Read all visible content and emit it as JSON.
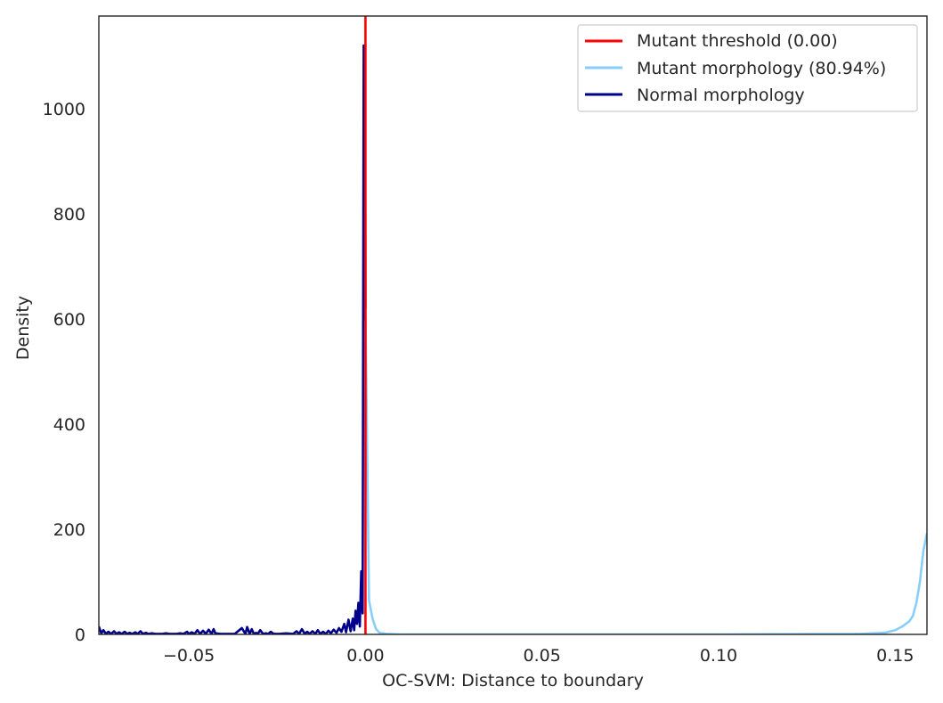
{
  "chart_data": {
    "type": "line",
    "xlabel": "OC-SVM: Distance to boundary",
    "ylabel": "Density",
    "xlim": [
      -0.0755,
      0.159
    ],
    "ylim": [
      0,
      1176
    ],
    "x_ticks": [
      -0.05,
      0.0,
      0.05,
      0.1,
      0.15
    ],
    "x_tick_labels": [
      "−0.05",
      "0.00",
      "0.05",
      "0.10",
      "0.15"
    ],
    "y_ticks": [
      0,
      200,
      400,
      600,
      800,
      1000
    ],
    "y_tick_labels": [
      "0",
      "200",
      "400",
      "600",
      "800",
      "1000"
    ],
    "grid": false,
    "legend_position": "top-right",
    "threshold": {
      "name": "Mutant threshold (0.00)",
      "x": 0.0,
      "color": "#ff0000"
    },
    "series": [
      {
        "name": "Mutant morphology (80.94%)",
        "color": "#87cefa",
        "x": [
          0.0,
          0.001,
          0.002,
          0.003,
          0.004,
          0.006,
          0.01,
          0.05,
          0.1,
          0.14,
          0.147,
          0.15,
          0.152,
          0.154,
          0.155,
          0.156,
          0.157,
          0.158,
          0.159
        ],
        "y": [
          620,
          65,
          30,
          10,
          3,
          1,
          0,
          0,
          0,
          1,
          3,
          8,
          15,
          25,
          35,
          60,
          100,
          160,
          192
        ]
      },
      {
        "name": "Normal morphology",
        "color": "#00008b",
        "x": [
          -0.0755,
          -0.0748,
          -0.0742,
          -0.0735,
          -0.0728,
          -0.072,
          -0.0712,
          -0.0705,
          -0.0698,
          -0.069,
          -0.0682,
          -0.0675,
          -0.0668,
          -0.066,
          -0.0652,
          -0.0645,
          -0.0637,
          -0.063,
          -0.0622,
          -0.0614,
          -0.0605,
          -0.0595,
          -0.0585,
          -0.0575,
          -0.0565,
          -0.0555,
          -0.0545,
          -0.0535,
          -0.0525,
          -0.0515,
          -0.0505,
          -0.05,
          -0.0492,
          -0.0484,
          -0.0476,
          -0.0468,
          -0.046,
          -0.0452,
          -0.0444,
          -0.0436,
          -0.043,
          -0.0425,
          -0.041,
          -0.039,
          -0.037,
          -0.035,
          -0.034,
          -0.0335,
          -0.0328,
          -0.0322,
          -0.0316,
          -0.031,
          -0.0305,
          -0.0298,
          -0.029,
          -0.0282,
          -0.0275,
          -0.0268,
          -0.026,
          -0.0245,
          -0.0225,
          -0.0205,
          -0.0195,
          -0.0188,
          -0.018,
          -0.0172,
          -0.0165,
          -0.0158,
          -0.015,
          -0.0142,
          -0.0135,
          -0.0128,
          -0.012,
          -0.0112,
          -0.0105,
          -0.0098,
          -0.009,
          -0.0082,
          -0.0075,
          -0.0068,
          -0.006,
          -0.0055,
          -0.0048,
          -0.0042,
          -0.0036,
          -0.0032,
          -0.0028,
          -0.0024,
          -0.002,
          -0.0016,
          -0.0012,
          -0.0008,
          -0.0005,
          -0.0003,
          -0.0001,
          0.0
        ],
        "y": [
          15,
          2,
          8,
          1,
          5,
          1,
          6,
          1,
          4,
          1,
          5,
          1,
          3,
          1,
          4,
          1,
          6,
          1,
          3,
          1,
          2,
          1,
          1,
          1,
          2,
          1,
          1,
          1,
          2,
          1,
          5,
          1,
          4,
          1,
          8,
          1,
          7,
          1,
          9,
          1,
          10,
          2,
          1,
          1,
          1,
          12,
          1,
          14,
          1,
          10,
          1,
          3,
          1,
          8,
          1,
          2,
          1,
          5,
          1,
          1,
          2,
          1,
          6,
          1,
          10,
          1,
          5,
          1,
          6,
          1,
          8,
          1,
          5,
          1,
          7,
          2,
          9,
          3,
          12,
          5,
          20,
          4,
          28,
          6,
          30,
          8,
          45,
          20,
          60,
          15,
          120,
          40,
          1120,
          600,
          1000,
          620
        ]
      }
    ]
  }
}
